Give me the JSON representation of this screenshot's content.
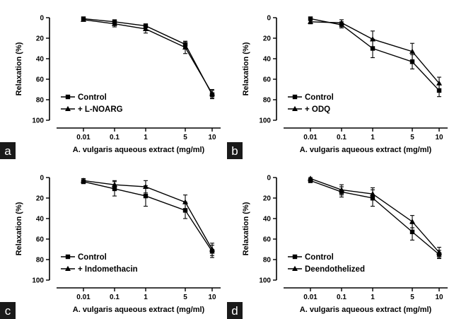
{
  "chart_data": [
    {
      "type": "line",
      "panel_label": "a",
      "xlabel": "A. vulgaris aqueous extract (mg/ml)",
      "ylabel": "Relaxation (%)",
      "categories": [
        "0.01",
        "0.1",
        "1",
        "5",
        "10"
      ],
      "y_ticks": [
        0,
        20,
        40,
        60,
        80,
        100
      ],
      "ylim": [
        0,
        100
      ],
      "y_inverted": true,
      "legend_position": "bottom-left",
      "series": [
        {
          "name": "Control",
          "marker": "square",
          "values": [
            1,
            4,
            8,
            26,
            75
          ],
          "errors": [
            1,
            2,
            2,
            3,
            4
          ]
        },
        {
          "name": "+ L-NOARG",
          "marker": "triangle",
          "values": [
            2,
            6,
            11,
            29,
            74
          ],
          "errors": [
            1,
            3,
            4,
            6,
            4
          ]
        }
      ]
    },
    {
      "type": "line",
      "panel_label": "b",
      "xlabel": "A. vulgaris aqueous extract (mg/ml)",
      "ylabel": "Relaxation (%)",
      "categories": [
        "0.01",
        "0.1",
        "1",
        "5",
        "10"
      ],
      "y_ticks": [
        0,
        20,
        40,
        60,
        80,
        100
      ],
      "ylim": [
        0,
        100
      ],
      "y_inverted": true,
      "legend_position": "bottom-left",
      "series": [
        {
          "name": "Control",
          "marker": "square",
          "values": [
            1,
            7,
            30,
            43,
            71
          ],
          "errors": [
            1,
            3,
            9,
            7,
            6
          ]
        },
        {
          "name": "+ ODQ",
          "marker": "triangle",
          "values": [
            4,
            5,
            21,
            33,
            64
          ],
          "errors": [
            2,
            3,
            8,
            8,
            6
          ]
        }
      ]
    },
    {
      "type": "line",
      "panel_label": "c",
      "xlabel": "A. vulgaris aqueous extract (mg/ml)",
      "ylabel": "Relaxation (%)",
      "categories": [
        "0.01",
        "0.1",
        "1",
        "5",
        "10"
      ],
      "y_ticks": [
        0,
        20,
        40,
        60,
        80,
        100
      ],
      "ylim": [
        0,
        100
      ],
      "y_inverted": true,
      "legend_position": "bottom-left",
      "series": [
        {
          "name": "Control",
          "marker": "square",
          "values": [
            4,
            11,
            18,
            32,
            72
          ],
          "errors": [
            2,
            7,
            10,
            8,
            6
          ]
        },
        {
          "name": "+ Indomethacin",
          "marker": "triangle",
          "values": [
            3,
            7,
            9,
            24,
            70
          ],
          "errors": [
            2,
            4,
            6,
            7,
            6
          ]
        }
      ]
    },
    {
      "type": "line",
      "panel_label": "d",
      "xlabel": "A. vulgaris aqueous extract (mg/ml)",
      "ylabel": "Relaxation (%)",
      "categories": [
        "0.01",
        "0.1",
        "1",
        "5",
        "10"
      ],
      "y_ticks": [
        0,
        20,
        40,
        60,
        80,
        100
      ],
      "ylim": [
        0,
        100
      ],
      "y_inverted": true,
      "legend_position": "bottom-left",
      "series": [
        {
          "name": "Control",
          "marker": "square",
          "values": [
            3,
            14,
            20,
            53,
            75
          ],
          "errors": [
            2,
            5,
            8,
            8,
            4
          ]
        },
        {
          "name": "Deendothelized",
          "marker": "triangle",
          "values": [
            1,
            12,
            16,
            43,
            73
          ],
          "errors": [
            1,
            5,
            6,
            6,
            5
          ]
        }
      ]
    }
  ]
}
